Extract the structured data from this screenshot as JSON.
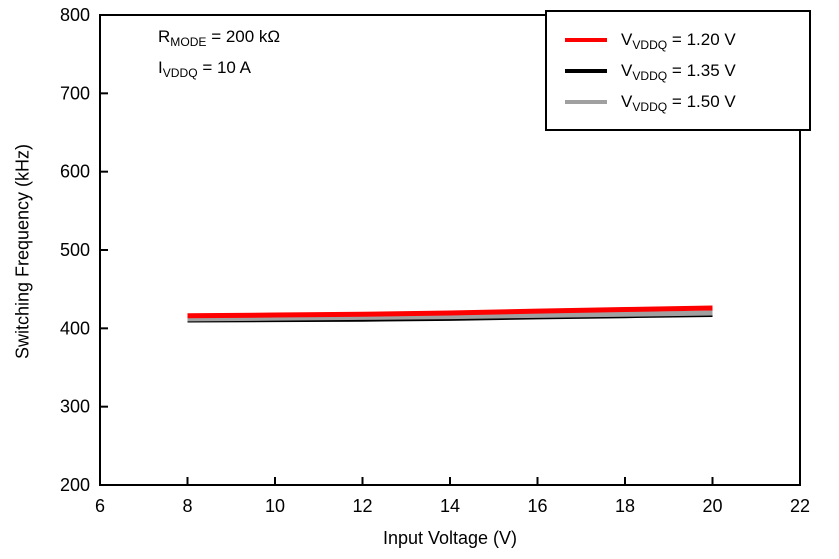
{
  "chart_data": {
    "type": "line",
    "title": "",
    "xlabel": "Input Voltage (V)",
    "ylabel": "Switching Frequency (kHz)",
    "xlim": [
      6,
      22
    ],
    "ylim": [
      200,
      800
    ],
    "xticks": [
      6,
      8,
      10,
      12,
      14,
      16,
      18,
      20,
      22
    ],
    "yticks": [
      200,
      300,
      400,
      500,
      600,
      700,
      800
    ],
    "grid": false,
    "legend_position": "top-right",
    "frame_color": "#000000",
    "x": [
      8,
      10,
      12,
      14,
      16,
      18,
      20
    ],
    "series": [
      {
        "name": "VVDDQ = 1.20 V",
        "label_main": "V",
        "label_sub": "VDDQ",
        "label_rest": " = 1.20 V",
        "color": "#ff0000",
        "stroke_width": 5,
        "z": 3,
        "values": [
          416,
          417,
          418,
          419.5,
          422,
          424,
          426
        ]
      },
      {
        "name": "VVDDQ = 1.35 V",
        "label_main": "V",
        "label_sub": "VDDQ",
        "label_rest": " = 1.35 V",
        "color": "#000000",
        "stroke_width": 4,
        "z": 1,
        "values": [
          410,
          410.5,
          411,
          412,
          414,
          415.5,
          417
        ]
      },
      {
        "name": "VVDDQ = 1.50 V",
        "label_main": "V",
        "label_sub": "VDDQ",
        "label_rest": " = 1.50 V",
        "color": "#a0a0a0",
        "stroke_width": 5,
        "z": 2,
        "values": [
          412,
          413,
          414,
          415,
          416.5,
          418,
          419.5
        ]
      }
    ],
    "annotations": [
      {
        "main": "R",
        "sub": "MODE",
        "rest": " = 200 kΩ"
      },
      {
        "main": "I",
        "sub": "VDDQ",
        "rest": " = 10 A"
      }
    ]
  }
}
